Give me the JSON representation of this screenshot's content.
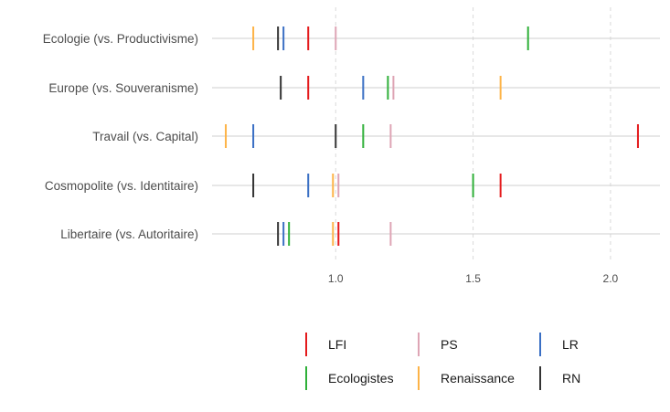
{
  "chart_data": {
    "type": "strip",
    "categories": [
      "Ecologie (vs. Productivisme)",
      "Europe (vs. Souveranisme)",
      "Travail (vs. Capital)",
      "Cosmopolite (vs. Identitaire)",
      "Libertaire (vs. Autoritaire)"
    ],
    "x_ticks": [
      1.0,
      1.5,
      2.0
    ],
    "x_tick_labels": [
      "1.0",
      "1.5",
      "2.0"
    ],
    "xlim": [
      0.55,
      2.18
    ],
    "grid": true,
    "legend_position": "bottom",
    "series": [
      {
        "name": "LFI",
        "color": "#e41a1c",
        "values": [
          0.9,
          0.9,
          2.1,
          1.6,
          1.01
        ]
      },
      {
        "name": "PS",
        "color": "#dea5b5",
        "values": [
          1.0,
          1.21,
          1.2,
          1.01,
          1.2
        ]
      },
      {
        "name": "LR",
        "color": "#3a6fc4",
        "values": [
          0.81,
          1.1,
          0.7,
          0.9,
          0.81
        ]
      },
      {
        "name": "Ecologistes",
        "color": "#2fb039",
        "values": [
          1.7,
          1.19,
          1.1,
          1.5,
          0.83
        ]
      },
      {
        "name": "Renaissance",
        "color": "#fdb347",
        "values": [
          0.7,
          1.6,
          0.6,
          0.99,
          0.99
        ]
      },
      {
        "name": "RN",
        "color": "#333333",
        "values": [
          0.79,
          0.8,
          1.0,
          0.7,
          0.79
        ]
      }
    ]
  }
}
